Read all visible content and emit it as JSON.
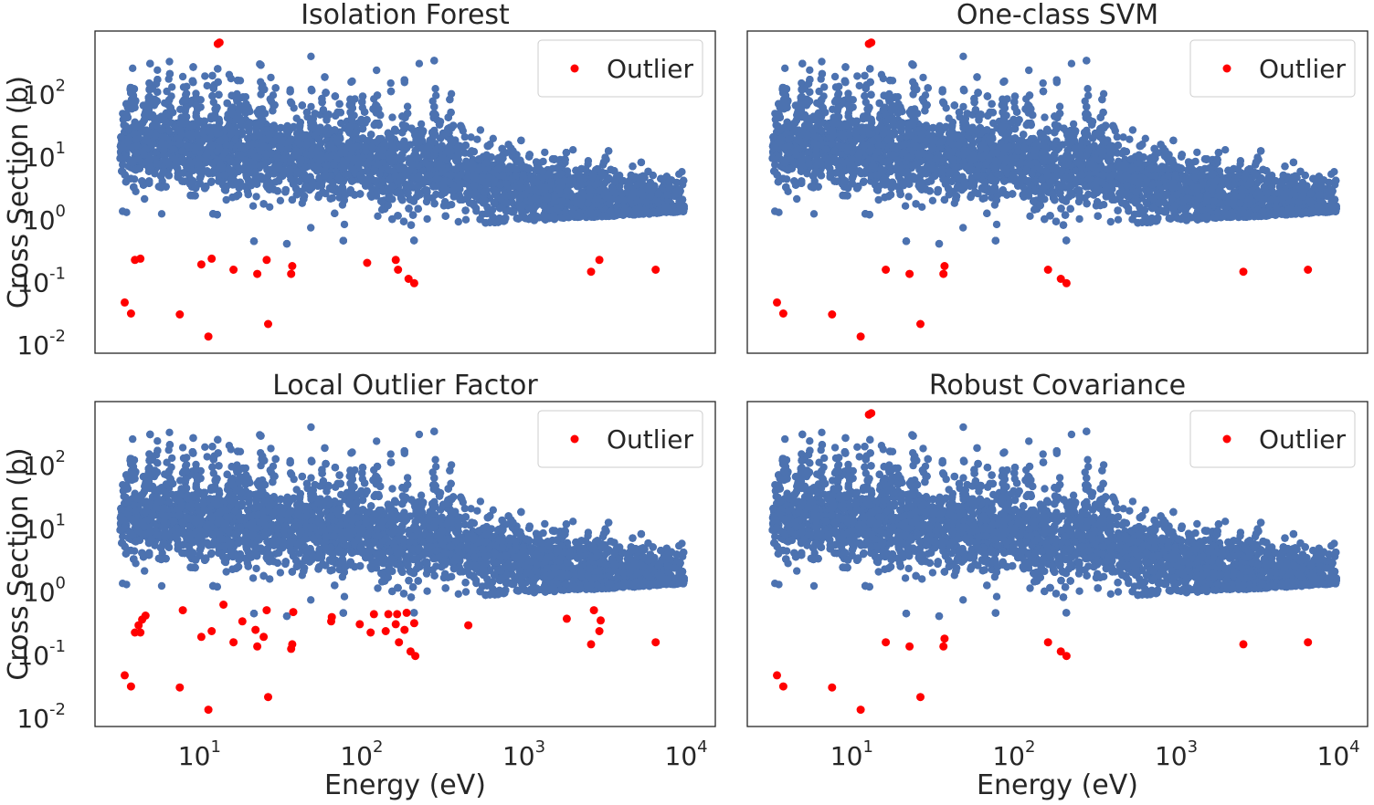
{
  "chart_data": [
    {
      "type": "scatter",
      "title": "Isolation Forest",
      "xlabel": "",
      "ylabel": "Cross Section (b)",
      "xscale": "log",
      "yscale": "log",
      "xlim": [
        2.1,
        14000
      ],
      "ylim": [
        0.0065,
        900
      ],
      "x_tick_labels": [],
      "y_ticks": [
        {
          "base": "10",
          "exp": "-2"
        },
        {
          "base": "10",
          "exp": "-1"
        },
        {
          "base": "10",
          "exp": "0"
        },
        {
          "base": "10",
          "exp": "1"
        },
        {
          "base": "10",
          "exp": "2"
        }
      ],
      "legend": {
        "position": "top-right",
        "entries": [
          {
            "name": "Outlier",
            "color": "#ff0000"
          }
        ]
      },
      "series": [
        {
          "name": "",
          "color": "#4c72b0",
          "role": "inlier-data"
        },
        {
          "name": "Outlier",
          "color": "#ff0000",
          "points": [
            [
              3.2,
              0.042
            ],
            [
              3.5,
              0.028
            ],
            [
              3.7,
              0.2
            ],
            [
              4.0,
              0.21
            ],
            [
              7.0,
              0.027
            ],
            [
              9.5,
              0.17
            ],
            [
              10.5,
              0.012
            ],
            [
              11.0,
              0.21
            ],
            [
              12.0,
              560
            ],
            [
              12.3,
              590
            ],
            [
              15.0,
              0.14
            ],
            [
              21.0,
              0.12
            ],
            [
              24.0,
              0.2
            ],
            [
              24.5,
              0.019
            ],
            [
              34.0,
              0.12
            ],
            [
              34.5,
              0.16
            ],
            [
              100,
              0.18
            ],
            [
              150,
              0.2
            ],
            [
              155,
              0.14
            ],
            [
              180,
              0.1
            ],
            [
              195,
              0.085
            ],
            [
              2400,
              0.13
            ],
            [
              2700,
              0.2
            ],
            [
              6000,
              0.14
            ]
          ]
        }
      ]
    },
    {
      "type": "scatter",
      "title": "One-class SVM",
      "xlabel": "",
      "ylabel": "",
      "xscale": "log",
      "yscale": "log",
      "xlim": [
        2.1,
        14000
      ],
      "ylim": [
        0.0065,
        900
      ],
      "x_tick_labels": [],
      "y_ticks": [],
      "legend": {
        "position": "top-right",
        "entries": [
          {
            "name": "Outlier",
            "color": "#ff0000"
          }
        ]
      },
      "series": [
        {
          "name": "",
          "color": "#4c72b0",
          "role": "inlier-data"
        },
        {
          "name": "Outlier",
          "color": "#ff0000",
          "points": [
            [
              3.2,
              0.042
            ],
            [
              3.5,
              0.028
            ],
            [
              7.0,
              0.027
            ],
            [
              10.5,
              0.012
            ],
            [
              11.8,
              560
            ],
            [
              12.2,
              590
            ],
            [
              15.0,
              0.14
            ],
            [
              21.0,
              0.12
            ],
            [
              24.5,
              0.019
            ],
            [
              34.0,
              0.12
            ],
            [
              34.5,
              0.16
            ],
            [
              150,
              0.14
            ],
            [
              180,
              0.1
            ],
            [
              195,
              0.085
            ],
            [
              2400,
              0.13
            ],
            [
              6000,
              0.14
            ]
          ]
        }
      ]
    },
    {
      "type": "scatter",
      "title": "Local Outlier Factor",
      "xlabel": "Energy (eV)",
      "ylabel": "Cross Section (b)",
      "xscale": "log",
      "yscale": "log",
      "xlim": [
        2.1,
        14000
      ],
      "ylim": [
        0.0065,
        900
      ],
      "x_ticks": [
        {
          "base": "10",
          "exp": "1"
        },
        {
          "base": "10",
          "exp": "2"
        },
        {
          "base": "10",
          "exp": "3"
        },
        {
          "base": "10",
          "exp": "4"
        }
      ],
      "y_ticks": [
        {
          "base": "10",
          "exp": "-2"
        },
        {
          "base": "10",
          "exp": "-1"
        },
        {
          "base": "10",
          "exp": "0"
        },
        {
          "base": "10",
          "exp": "1"
        },
        {
          "base": "10",
          "exp": "2"
        }
      ],
      "legend": {
        "position": "top-right",
        "entries": [
          {
            "name": "Outlier",
            "color": "#ff0000"
          }
        ]
      },
      "series": [
        {
          "name": "",
          "color": "#4c72b0",
          "role": "inlier-data"
        },
        {
          "name": "Outlier",
          "color": "#ff0000",
          "points": [
            [
              3.2,
              0.042
            ],
            [
              3.5,
              0.028
            ],
            [
              3.7,
              0.2
            ],
            [
              3.9,
              0.26
            ],
            [
              4.0,
              0.2
            ],
            [
              4.1,
              0.32
            ],
            [
              4.3,
              0.37
            ],
            [
              7.0,
              0.027
            ],
            [
              7.3,
              0.45
            ],
            [
              9.5,
              0.17
            ],
            [
              10.5,
              0.012
            ],
            [
              11.0,
              0.21
            ],
            [
              13.0,
              0.55
            ],
            [
              15.0,
              0.14
            ],
            [
              17.0,
              0.3
            ],
            [
              20.5,
              0.22
            ],
            [
              21.0,
              0.12
            ],
            [
              23.0,
              0.17
            ],
            [
              24.0,
              0.45
            ],
            [
              24.5,
              0.019
            ],
            [
              34.0,
              0.11
            ],
            [
              34.5,
              0.13
            ],
            [
              35.0,
              0.42
            ],
            [
              60,
              0.3
            ],
            [
              60.5,
              0.35
            ],
            [
              90,
              0.27
            ],
            [
              105,
              0.2
            ],
            [
              110,
              0.39
            ],
            [
              130,
              0.21
            ],
            [
              135,
              0.39
            ],
            [
              150,
              0.27
            ],
            [
              153,
              0.39
            ],
            [
              157,
              0.14
            ],
            [
              170,
              0.22
            ],
            [
              175,
              0.41
            ],
            [
              185,
              0.1
            ],
            [
              195,
              0.28
            ],
            [
              198,
              0.085
            ],
            [
              420,
              0.26
            ],
            [
              1700,
              0.33
            ],
            [
              2400,
              0.13
            ],
            [
              2500,
              0.45
            ],
            [
              2700,
              0.21
            ],
            [
              2750,
              0.31
            ],
            [
              6000,
              0.14
            ]
          ]
        }
      ]
    },
    {
      "type": "scatter",
      "title": "Robust Covariance",
      "xlabel": "Energy (eV)",
      "ylabel": "",
      "xscale": "log",
      "yscale": "log",
      "xlim": [
        2.1,
        14000
      ],
      "ylim": [
        0.0065,
        900
      ],
      "x_ticks": [
        {
          "base": "10",
          "exp": "1"
        },
        {
          "base": "10",
          "exp": "2"
        },
        {
          "base": "10",
          "exp": "3"
        },
        {
          "base": "10",
          "exp": "4"
        }
      ],
      "y_ticks": [],
      "legend": {
        "position": "top-right",
        "entries": [
          {
            "name": "Outlier",
            "color": "#ff0000"
          }
        ]
      },
      "series": [
        {
          "name": "",
          "color": "#4c72b0",
          "role": "inlier-data"
        },
        {
          "name": "Outlier",
          "color": "#ff0000",
          "points": [
            [
              3.2,
              0.042
            ],
            [
              3.5,
              0.028
            ],
            [
              7.0,
              0.027
            ],
            [
              10.5,
              0.012
            ],
            [
              11.8,
              560
            ],
            [
              12.2,
              590
            ],
            [
              15.0,
              0.14
            ],
            [
              21.0,
              0.12
            ],
            [
              24.5,
              0.019
            ],
            [
              34.0,
              0.12
            ],
            [
              34.5,
              0.16
            ],
            [
              150,
              0.14
            ],
            [
              180,
              0.1
            ],
            [
              195,
              0.085
            ],
            [
              2400,
              0.13
            ],
            [
              6000,
              0.14
            ]
          ]
        }
      ]
    }
  ]
}
